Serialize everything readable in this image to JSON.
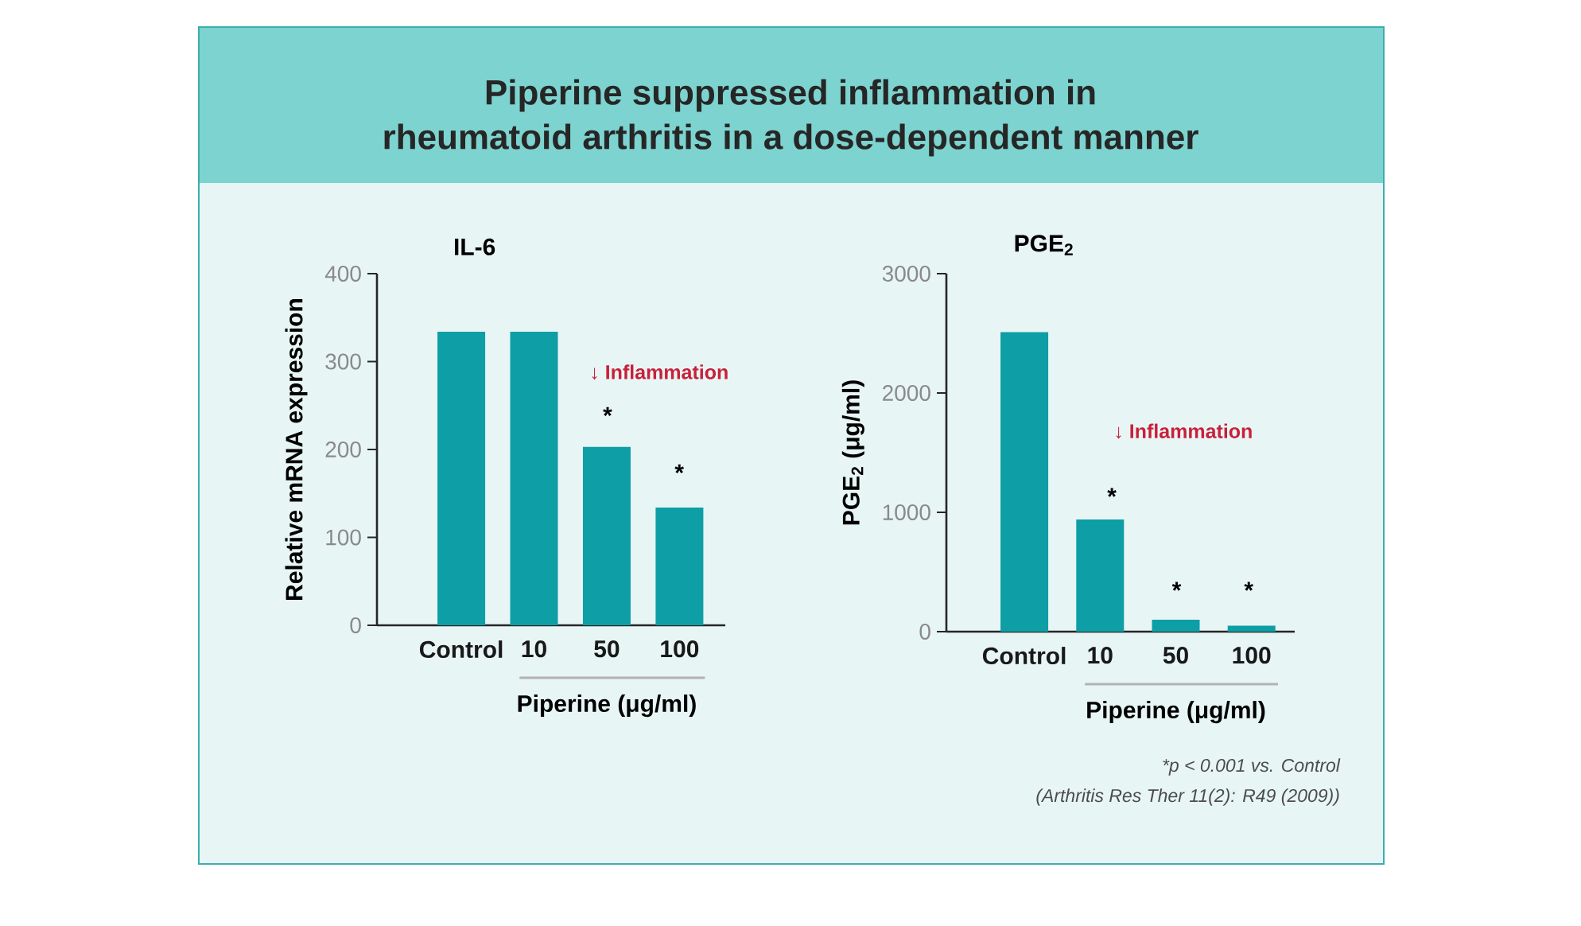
{
  "chart_data": [
    {
      "type": "other",
      "title": "Piperine suppressed inflammation in\nrheumatoid arthritis in a dose-dependent manner",
      "annotations": [
        "*p < 0.001 vs. Control",
        "(Arthritis Res Ther 11(2): R49 (2009))"
      ]
    },
    {
      "type": "bar",
      "title": "IL-6",
      "ylabel": "Relative mRNA expression",
      "xlabel": "Piperine (μg/ml)",
      "categories": [
        "Control",
        "10",
        "50",
        "100"
      ],
      "values": [
        334,
        334,
        203,
        134
      ],
      "color": "#0e9ea5",
      "ylim": [
        0,
        400
      ],
      "yticks": [
        0,
        100,
        200,
        300,
        400
      ],
      "annotations": [
        "↓ Inflammation",
        "*",
        "*"
      ]
    },
    {
      "type": "bar",
      "title": "PGE$_{2}$",
      "ylabel": "PGE$_{2}$ (μg/ml)",
      "xlabel": "Piperine (μg/ml)",
      "categories": [
        "Control",
        "10",
        "50",
        "100"
      ],
      "values": [
        2510,
        940,
        100,
        50
      ],
      "color": "#0e9ea5",
      "ylim": [
        0,
        3000
      ],
      "yticks": [
        0,
        1000,
        2000,
        3000
      ],
      "annotations": [
        "↓ Inflammation",
        "*",
        "*",
        "*"
      ]
    }
  ]
}
